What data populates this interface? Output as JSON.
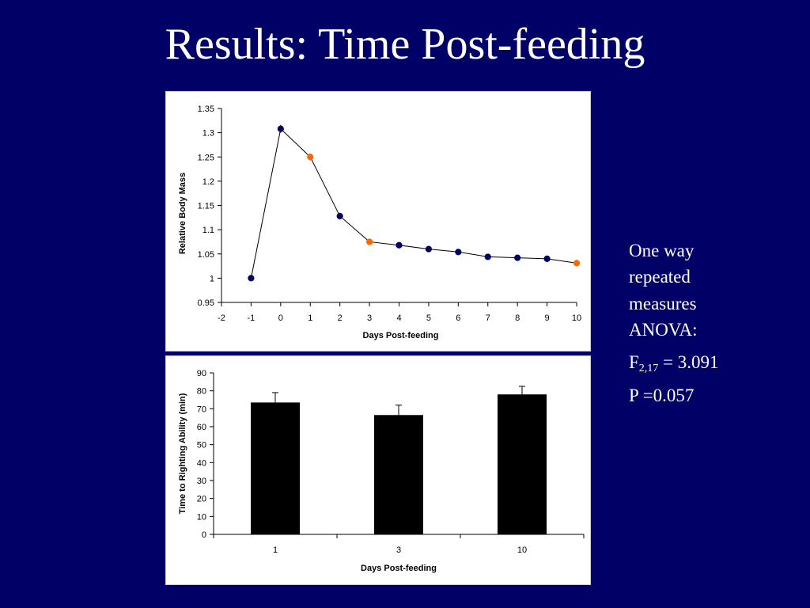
{
  "title": "Results: Time Post-feeding",
  "stats": {
    "test_lines": [
      "One way",
      "repeated",
      "measures",
      "ANOVA:"
    ],
    "f_prefix": "F",
    "f_subscript": "2,17",
    "f_value": " = 3.091",
    "p_value": "P =0.057"
  },
  "colors": {
    "background": "#000066",
    "series_point": "#000066",
    "highlight_point": "#ff6600",
    "bar_fill": "#000000"
  },
  "chart_data": [
    {
      "type": "line",
      "xlabel": "Days Post-feeding",
      "ylabel": "Relative Body Mass",
      "xlim": [
        -2,
        10
      ],
      "ylim": [
        0.95,
        1.35
      ],
      "x_ticks": [
        "-2",
        "-1",
        "0",
        "1",
        "2",
        "3",
        "4",
        "5",
        "6",
        "7",
        "8",
        "9",
        "10"
      ],
      "y_ticks": [
        "0.95",
        "1",
        "1.05",
        "1.1",
        "1.15",
        "1.2",
        "1.25",
        "1.3",
        "1.35"
      ],
      "grid": false,
      "series": [
        {
          "x": [
            -1,
            0,
            1,
            2,
            3,
            4,
            5,
            6,
            7,
            8,
            9,
            10
          ],
          "y": [
            1.0,
            1.308,
            1.25,
            1.128,
            1.075,
            1.068,
            1.06,
            1.054,
            1.044,
            1.042,
            1.04,
            1.031
          ],
          "error": [
            0.002,
            0.008,
            0.007,
            0.007,
            0.005,
            0.004,
            0.003,
            0.004,
            0.003,
            0.003,
            0.003,
            0.004
          ],
          "highlight": [
            false,
            false,
            true,
            false,
            true,
            false,
            false,
            false,
            false,
            false,
            false,
            true
          ]
        }
      ]
    },
    {
      "type": "bar",
      "xlabel": "Days Post-feeding",
      "ylabel": "Time to Righting Ability (min)",
      "categories": [
        "1",
        "3",
        "10"
      ],
      "values": [
        73.5,
        66.5,
        78
      ],
      "error": [
        5.5,
        5.5,
        4.5
      ],
      "ylim": [
        0,
        90
      ],
      "y_ticks": [
        "0",
        "10",
        "20",
        "30",
        "40",
        "50",
        "60",
        "70",
        "80",
        "90"
      ],
      "grid": false
    }
  ]
}
